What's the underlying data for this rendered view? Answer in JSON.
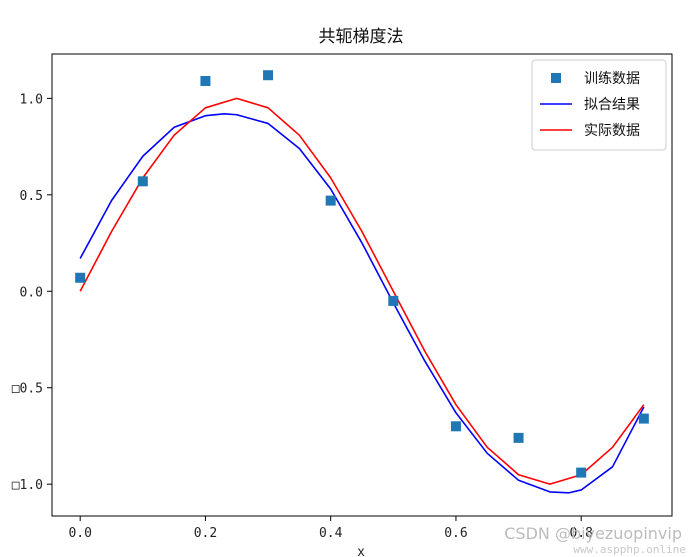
{
  "chart_data": {
    "type": "line",
    "title": "共轭梯度法",
    "xlabel": "x",
    "ylabel": "",
    "xlim": [
      -0.045,
      0.945
    ],
    "ylim": [
      -1.165,
      1.23
    ],
    "xticks": [
      0.0,
      0.2,
      0.4,
      0.6,
      0.8
    ],
    "xtick_labels": [
      "0.0",
      "0.2",
      "0.4",
      "0.6",
      "0.8"
    ],
    "yticks": [
      1.0,
      0.5,
      0.0,
      -0.5,
      -1.0
    ],
    "ytick_labels": [
      "1.0",
      "0.5",
      "0.0",
      "□0.5",
      "□1.0"
    ],
    "grid": false,
    "legend_position": "top-right",
    "series": [
      {
        "name": "训练数据",
        "kind": "scatter",
        "marker": "square",
        "color": "#1f77b4",
        "x": [
          0.0,
          0.1,
          0.2,
          0.3,
          0.4,
          0.5,
          0.6,
          0.7,
          0.8,
          0.9
        ],
        "y": [
          0.07,
          0.57,
          1.09,
          1.12,
          0.47,
          -0.05,
          -0.7,
          -0.76,
          -0.94,
          -0.66
        ]
      },
      {
        "name": "拟合结果",
        "kind": "line",
        "color": "#0000ff",
        "x": [
          0.0,
          0.05,
          0.1,
          0.15,
          0.2,
          0.23,
          0.25,
          0.3,
          0.35,
          0.4,
          0.45,
          0.5,
          0.55,
          0.6,
          0.65,
          0.7,
          0.75,
          0.78,
          0.8,
          0.85,
          0.9
        ],
        "y": [
          0.17,
          0.47,
          0.7,
          0.85,
          0.91,
          0.92,
          0.915,
          0.87,
          0.74,
          0.53,
          0.25,
          -0.06,
          -0.36,
          -0.63,
          -0.84,
          -0.98,
          -1.04,
          -1.045,
          -1.03,
          -0.91,
          -0.6
        ]
      },
      {
        "name": "实际数据",
        "kind": "line",
        "color": "#ff0000",
        "x": [
          0.0,
          0.05,
          0.1,
          0.15,
          0.2,
          0.25,
          0.3,
          0.35,
          0.4,
          0.45,
          0.5,
          0.55,
          0.6,
          0.65,
          0.7,
          0.75,
          0.8,
          0.85,
          0.9
        ],
        "y": [
          0.0,
          0.309,
          0.588,
          0.809,
          0.951,
          1.0,
          0.951,
          0.809,
          0.588,
          0.309,
          0.0,
          -0.309,
          -0.588,
          -0.809,
          -0.951,
          -1.0,
          -0.951,
          -0.809,
          -0.588
        ]
      }
    ]
  },
  "watermark": {
    "text": "CSDN @biyezuopinvip",
    "site": "www.aspphp.online"
  }
}
